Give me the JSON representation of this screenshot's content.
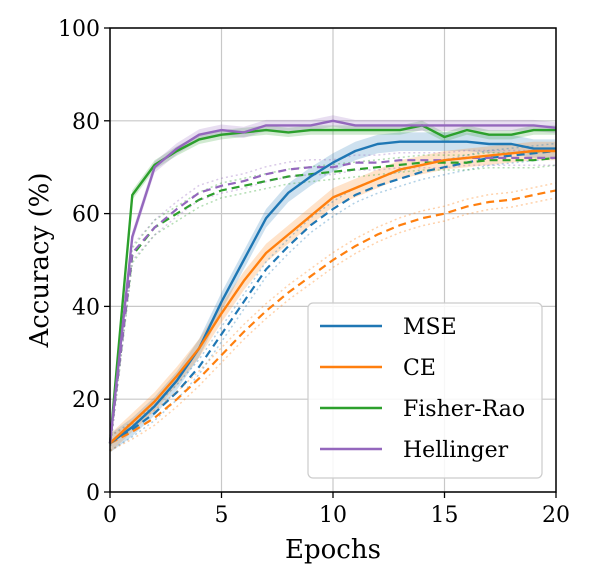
{
  "chart_data": {
    "type": "line",
    "xlabel": "Epochs",
    "ylabel": "Accuracy (%)",
    "xlim": [
      0,
      20
    ],
    "ylim": [
      0,
      100
    ],
    "xticks": [
      0,
      5,
      10,
      15,
      20
    ],
    "yticks": [
      0,
      20,
      40,
      60,
      80,
      100
    ],
    "grid": true,
    "legend_position": "lower-right",
    "x": [
      0,
      1,
      2,
      3,
      4,
      5,
      6,
      7,
      8,
      9,
      10,
      11,
      12,
      13,
      14,
      15,
      16,
      17,
      18,
      19,
      20
    ],
    "series": [
      {
        "name": "MSE",
        "color": "#1f77b4",
        "values": [
          10.5,
          14,
          18.5,
          24,
          31,
          41,
          50,
          59,
          64.5,
          68,
          71,
          73.5,
          75,
          75.5,
          75.5,
          75.5,
          75.5,
          75,
          75,
          74,
          74
        ],
        "band": 2,
        "dashed": [
          10.5,
          13.5,
          17,
          21.5,
          27,
          34,
          41,
          48,
          53,
          57.5,
          61,
          64,
          66,
          67.5,
          69,
          70,
          71,
          72,
          72.5,
          73,
          73.5
        ]
      },
      {
        "name": "CE",
        "color": "#ff7f0e",
        "values": [
          10.5,
          15,
          19.5,
          25,
          31,
          38.5,
          45.5,
          51.5,
          55.5,
          59.5,
          63.5,
          65.5,
          67.5,
          69.5,
          70.5,
          71.5,
          72,
          72.5,
          73,
          73.5,
          73.5
        ],
        "band": 2,
        "dashed": [
          10.5,
          13,
          16,
          20,
          24.5,
          29.5,
          34.5,
          39,
          43,
          46.5,
          50,
          53,
          55.5,
          57.5,
          59,
          60,
          61.5,
          62.5,
          63,
          64,
          65
        ]
      },
      {
        "name": "Fisher-Rao",
        "color": "#2ca02c",
        "values": [
          10.5,
          64,
          70.5,
          73.5,
          76,
          77,
          77.5,
          78,
          77.5,
          78,
          78,
          78,
          78,
          78,
          79,
          76.5,
          78,
          77,
          77,
          78,
          78
        ],
        "band": 1,
        "dashed": [
          10.5,
          51,
          57,
          60,
          63,
          65,
          66,
          67,
          68,
          68.5,
          69,
          69.5,
          70,
          70.5,
          71,
          71,
          71,
          71.5,
          71.5,
          71.5,
          72
        ]
      },
      {
        "name": "Hellinger",
        "color": "#9467bd",
        "values": [
          10.5,
          55,
          70,
          74,
          77,
          78,
          77.5,
          79,
          79,
          79,
          80,
          79,
          79,
          79,
          79,
          79,
          79,
          79,
          79,
          79,
          78.5
        ],
        "band": 1.2,
        "dashed": [
          10.5,
          51.5,
          57,
          61,
          64.5,
          66,
          67,
          68.5,
          69.5,
          70,
          70,
          71,
          71,
          71.5,
          71.5,
          71.5,
          72,
          72,
          72,
          72,
          72
        ]
      }
    ]
  }
}
